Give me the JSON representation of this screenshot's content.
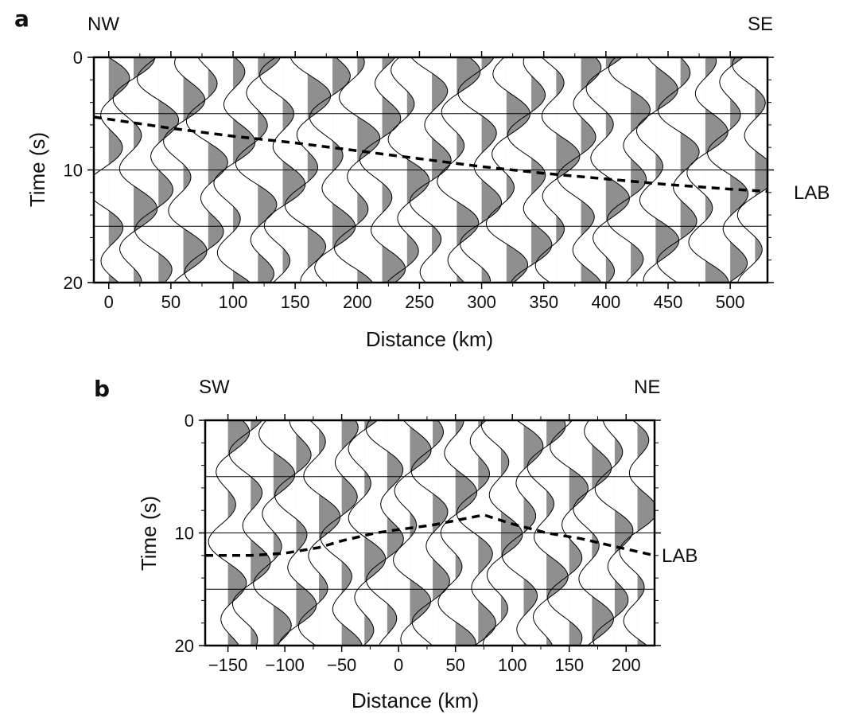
{
  "chart_data": [
    {
      "type": "line",
      "panel_label": "a",
      "direction_left": "NW",
      "direction_right": "SE",
      "xlabel": "Distance (km)",
      "ylabel": "Time (s)",
      "xlim": [
        -12,
        530
      ],
      "ylim": [
        0,
        20
      ],
      "y_inverted": true,
      "x_ticks": [
        0,
        50,
        100,
        150,
        200,
        250,
        300,
        350,
        400,
        450,
        500
      ],
      "y_ticks": [
        0,
        10,
        20
      ],
      "gridlines_y": [
        5,
        10,
        15
      ],
      "trace_positions": [
        0,
        20,
        40,
        60,
        80,
        100,
        120,
        140,
        160,
        180,
        200,
        220,
        240,
        260,
        280,
        300,
        320,
        340,
        360,
        380,
        400,
        420,
        440,
        460,
        480,
        500,
        520
      ],
      "lab_annotation": "LAB",
      "series": [
        {
          "name": "LAB",
          "style": "dashed",
          "x": [
            -12,
            50,
            100,
            150,
            200,
            250,
            300,
            350,
            400,
            450,
            500,
            530
          ],
          "y": [
            5.3,
            6.3,
            7.0,
            7.6,
            8.3,
            9.0,
            9.7,
            10.3,
            10.8,
            11.3,
            11.7,
            11.9
          ]
        }
      ]
    },
    {
      "type": "line",
      "panel_label": "b",
      "direction_left": "SW",
      "direction_right": "NE",
      "xlabel": "Distance (km)",
      "ylabel": "Time (s)",
      "xlim": [
        -170,
        225
      ],
      "ylim": [
        0,
        20
      ],
      "y_inverted": true,
      "x_ticks": [
        -150,
        -100,
        -50,
        0,
        50,
        100,
        150,
        200
      ],
      "y_ticks": [
        0,
        10,
        20
      ],
      "gridlines_y": [
        5,
        10,
        15
      ],
      "trace_positions": [
        -150,
        -130,
        -110,
        -90,
        -70,
        -50,
        -30,
        -10,
        10,
        30,
        50,
        70,
        90,
        110,
        130,
        150,
        170,
        190,
        210
      ],
      "lab_annotation": "LAB",
      "series": [
        {
          "name": "LAB",
          "style": "dashed",
          "x": [
            -170,
            -130,
            -100,
            -70,
            -50,
            -20,
            0,
            30,
            50,
            75,
            100,
            130,
            160,
            190,
            225
          ],
          "y": [
            12.0,
            12.0,
            11.8,
            11.3,
            10.7,
            10.0,
            9.7,
            9.3,
            8.9,
            8.4,
            9.2,
            10.0,
            10.5,
            11.2,
            12.0
          ]
        }
      ]
    }
  ]
}
